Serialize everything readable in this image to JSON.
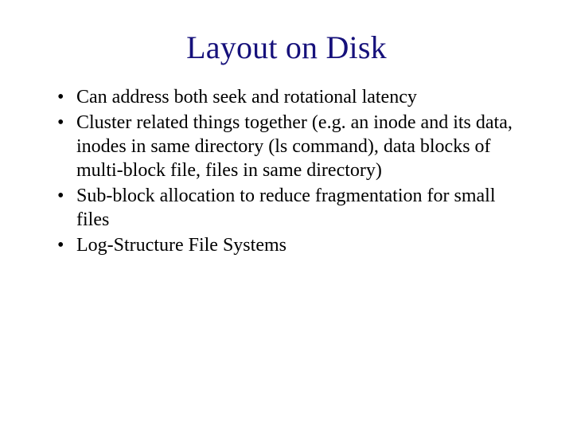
{
  "title": {
    "text": "Layout on Disk",
    "color": "#16117b",
    "fontsize": 40
  },
  "body": {
    "color": "#000000",
    "fontsize": 24,
    "bullets": [
      "Can address both seek and rotational latency",
      "Cluster related things together (e.g. an inode and its data, inodes in same directory (ls command), data blocks of multi-block file, files in same directory)",
      "Sub-block allocation to reduce fragmentation for small files",
      "Log-Structure File Systems"
    ]
  },
  "background_color": "#ffffff"
}
